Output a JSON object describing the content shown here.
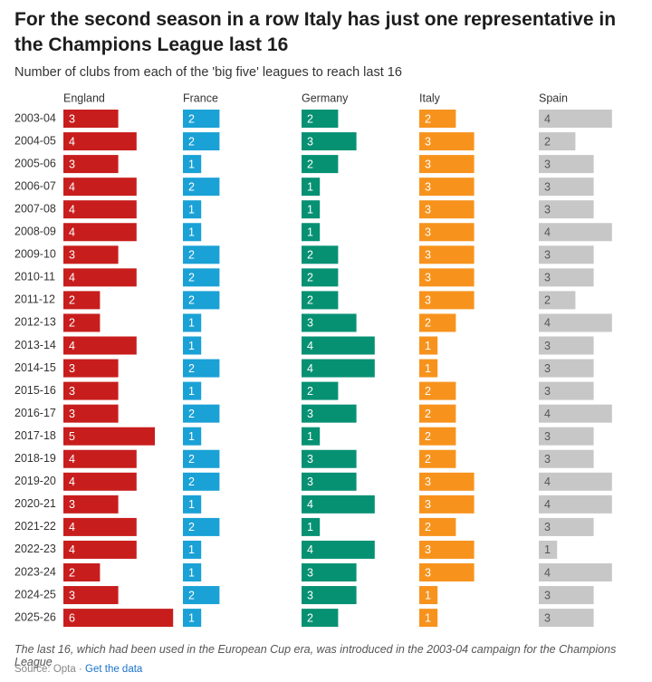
{
  "chart_data": {
    "type": "bar",
    "title": "For the second season in a row Italy has just one representative in the Champions League last 16",
    "subtitle": "Number of clubs from each of the 'big five' leagues to reach last 16",
    "categories": [
      "2003-04",
      "2004-05",
      "2005-06",
      "2006-07",
      "2007-08",
      "2008-09",
      "2009-10",
      "2010-11",
      "2011-12",
      "2012-13",
      "2013-14",
      "2014-15",
      "2015-16",
      "2016-17",
      "2017-18",
      "2018-19",
      "2019-20",
      "2020-21",
      "2021-22",
      "2022-23",
      "2023-24",
      "2024-25",
      "2025-26"
    ],
    "series": [
      {
        "name": "England",
        "color": "#c71e1d",
        "values": [
          3,
          4,
          3,
          4,
          4,
          4,
          3,
          4,
          2,
          2,
          4,
          3,
          3,
          3,
          5,
          4,
          4,
          3,
          4,
          4,
          2,
          3,
          6
        ]
      },
      {
        "name": "France",
        "color": "#1aa1d6",
        "values": [
          2,
          2,
          1,
          2,
          1,
          1,
          2,
          2,
          2,
          1,
          1,
          2,
          1,
          2,
          1,
          2,
          2,
          1,
          2,
          1,
          1,
          2,
          1
        ]
      },
      {
        "name": "Germany",
        "color": "#079173",
        "values": [
          2,
          3,
          2,
          1,
          1,
          1,
          2,
          2,
          2,
          3,
          4,
          4,
          2,
          3,
          1,
          3,
          3,
          4,
          1,
          4,
          3,
          3,
          2
        ]
      },
      {
        "name": "Italy",
        "color": "#f7931d",
        "values": [
          2,
          3,
          3,
          3,
          3,
          3,
          3,
          3,
          3,
          2,
          1,
          1,
          2,
          2,
          2,
          2,
          3,
          3,
          2,
          3,
          3,
          1,
          1
        ]
      },
      {
        "name": "Spain",
        "color": "#c7c7c7",
        "values": [
          4,
          2,
          3,
          3,
          3,
          4,
          3,
          3,
          2,
          4,
          3,
          3,
          3,
          4,
          3,
          3,
          4,
          4,
          3,
          1,
          4,
          3,
          3
        ]
      }
    ],
    "note": "The last 16, which had been used in the European Cup era, was introduced in the 2003-04 campaign for the Champions League",
    "source": "Source: Opta",
    "source_separator": "·",
    "link": "Get the data"
  }
}
